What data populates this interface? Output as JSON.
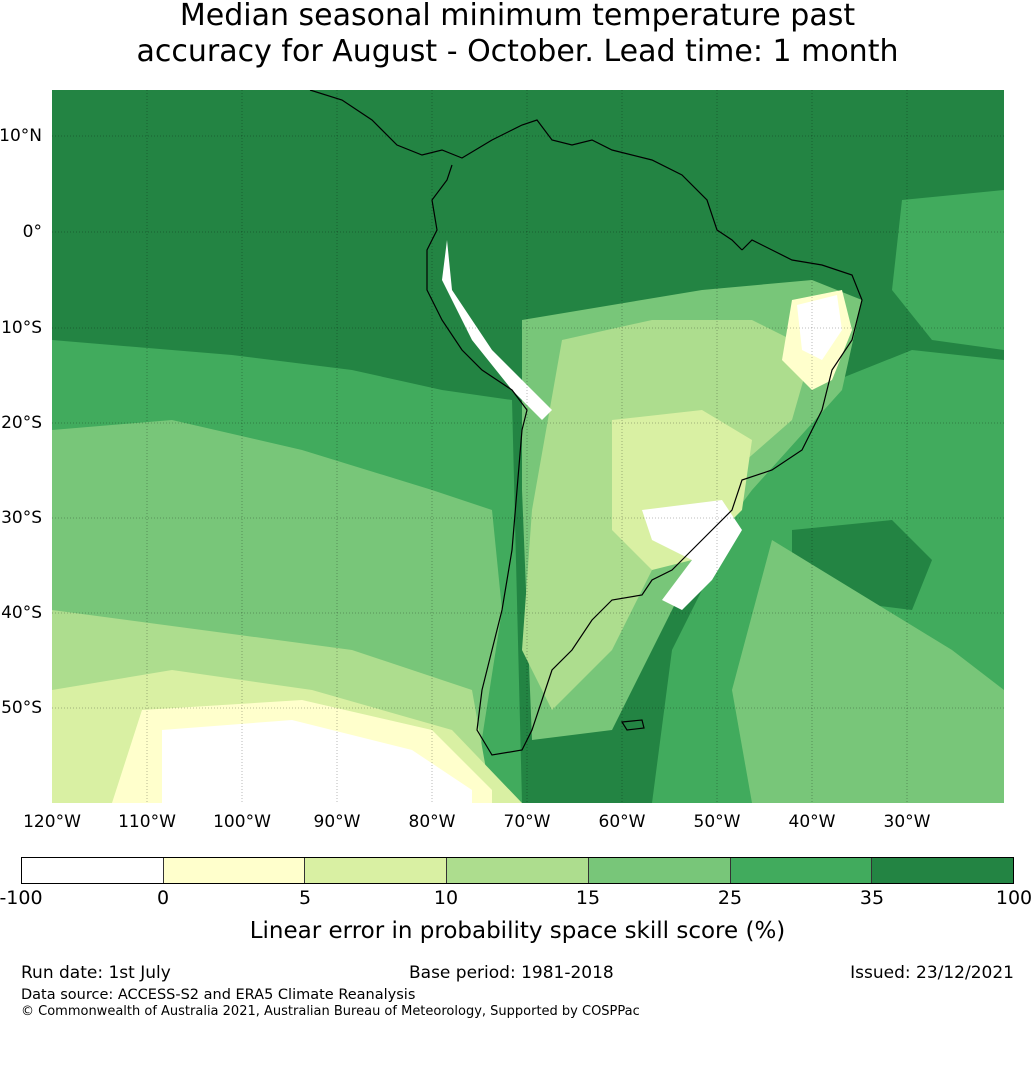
{
  "title": {
    "line1": "Median seasonal minimum temperature past",
    "line2": "accuracy for August - October. Lead time: 1 month"
  },
  "map": {
    "lat_labels": [
      "10°N",
      "0°",
      "10°S",
      "20°S",
      "30°S",
      "40°S",
      "50°S"
    ],
    "lon_labels": [
      "120°W",
      "110°W",
      "100°W",
      "90°W",
      "80°W",
      "70°W",
      "60°W",
      "50°W",
      "40°W",
      "30°W"
    ]
  },
  "colorbar": {
    "label": "Linear error in probability space skill score (%)",
    "ticks": [
      "-100",
      "0",
      "5",
      "10",
      "15",
      "25",
      "35",
      "100"
    ],
    "colors": [
      "#ffffff",
      "#ffffcc",
      "#d9f0a3",
      "#addd8e",
      "#78c679",
      "#41ab5d",
      "#238443"
    ]
  },
  "footer": {
    "run_date": "Run date: 1st July",
    "base_period": "Base period: 1981-2018",
    "issued": "Issued: 23/12/2021",
    "data_source": "Data source: ACCESS-S2 and ERA5 Climate Reanalysis",
    "copyright": "© Commonwealth of Australia 2021, Australian Bureau of Meteorology, Supported by COSPPac"
  }
}
